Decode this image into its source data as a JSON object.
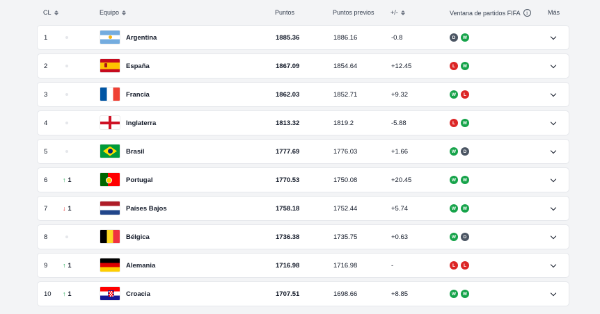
{
  "header": {
    "rank": "CL",
    "team": "Equipo",
    "points": "Puntos",
    "previous": "Puntos previos",
    "diff": "+/-",
    "form": "Ventana de partidos FIFA",
    "more": "Más"
  },
  "rows": [
    {
      "rank": "1",
      "move": "none",
      "move_value": "",
      "team": "Argentina",
      "flag": "argentina-flag-icon",
      "points": "1885.36",
      "previous": "1886.16",
      "diff": "-0.8",
      "form": [
        "D",
        "W"
      ]
    },
    {
      "rank": "2",
      "move": "none",
      "move_value": "",
      "team": "España",
      "flag": "spain-flag-icon",
      "points": "1867.09",
      "previous": "1854.64",
      "diff": "+12.45",
      "form": [
        "L",
        "W"
      ]
    },
    {
      "rank": "3",
      "move": "none",
      "move_value": "",
      "team": "Francia",
      "flag": "france-flag-icon",
      "points": "1862.03",
      "previous": "1852.71",
      "diff": "+9.32",
      "form": [
        "W",
        "L"
      ]
    },
    {
      "rank": "4",
      "move": "none",
      "move_value": "",
      "team": "Inglaterra",
      "flag": "england-flag-icon",
      "points": "1813.32",
      "previous": "1819.2",
      "diff": "-5.88",
      "form": [
        "L",
        "W"
      ]
    },
    {
      "rank": "5",
      "move": "none",
      "move_value": "",
      "team": "Brasil",
      "flag": "brazil-flag-icon",
      "points": "1777.69",
      "previous": "1776.03",
      "diff": "+1.66",
      "form": [
        "W",
        "D"
      ]
    },
    {
      "rank": "6",
      "move": "up",
      "move_value": "1",
      "team": "Portugal",
      "flag": "portugal-flag-icon",
      "points": "1770.53",
      "previous": "1750.08",
      "diff": "+20.45",
      "form": [
        "W",
        "W"
      ]
    },
    {
      "rank": "7",
      "move": "down",
      "move_value": "1",
      "team": "Países Bajos",
      "flag": "netherlands-flag-icon",
      "points": "1758.18",
      "previous": "1752.44",
      "diff": "+5.74",
      "form": [
        "W",
        "W"
      ]
    },
    {
      "rank": "8",
      "move": "none",
      "move_value": "",
      "team": "Bélgica",
      "flag": "belgium-flag-icon",
      "points": "1736.38",
      "previous": "1735.75",
      "diff": "+0.63",
      "form": [
        "W",
        "D"
      ]
    },
    {
      "rank": "9",
      "move": "up",
      "move_value": "1",
      "team": "Alemania",
      "flag": "germany-flag-icon",
      "points": "1716.98",
      "previous": "1716.98",
      "diff": "-",
      "form": [
        "L",
        "L"
      ]
    },
    {
      "rank": "10",
      "move": "up",
      "move_value": "1",
      "team": "Croacia",
      "flag": "croatia-flag-icon",
      "points": "1707.51",
      "previous": "1698.66",
      "diff": "+8.85",
      "form": [
        "W",
        "W"
      ]
    }
  ],
  "colors": {
    "win": "#16a34a",
    "loss": "#dc2626",
    "draw": "#4b5563",
    "up": "#16a34a",
    "down": "#dc2626"
  }
}
